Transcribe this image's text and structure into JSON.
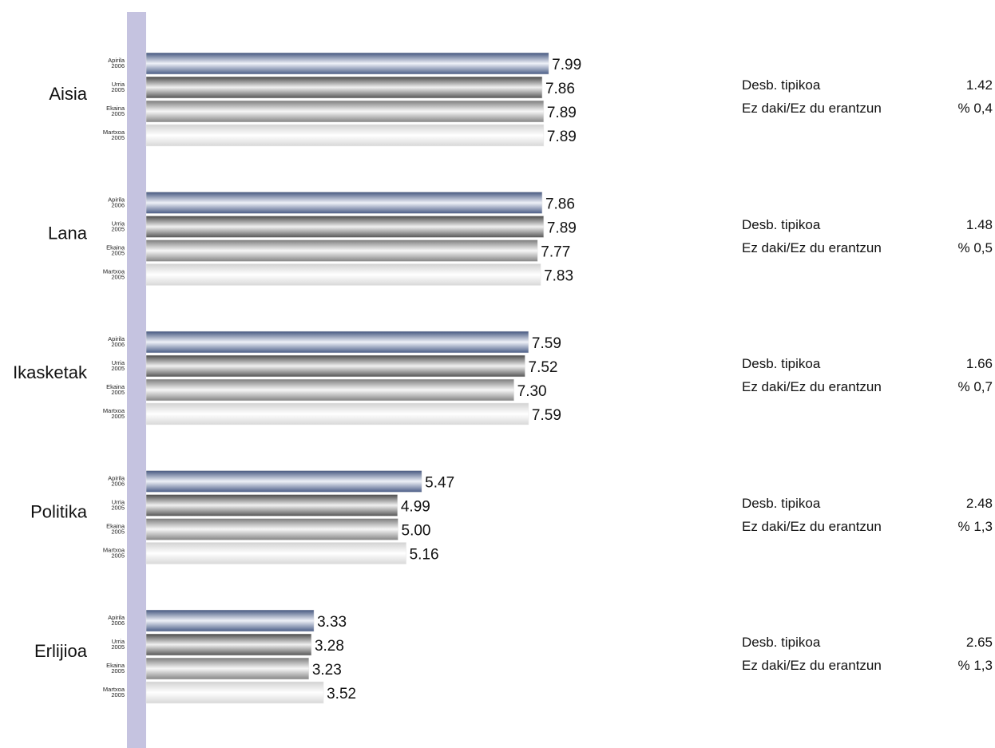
{
  "colors": {
    "axis_band": "#c5c3e0",
    "series_gradients": [
      [
        "#45577f",
        "#eef1f8",
        "#4a5c86"
      ],
      [
        "#4a4a4a",
        "#f0f0f0",
        "#555555"
      ],
      [
        "#7c7c7c",
        "#f7f7f7",
        "#858585"
      ],
      [
        "#d2d2d2",
        "#ffffff",
        "#d8d8d8"
      ]
    ]
  },
  "chart_data": {
    "type": "bar",
    "orientation": "horizontal",
    "xlim": [
      0,
      10
    ],
    "grid": false,
    "series": [
      {
        "name": "Apirila 2006",
        "label_lines": [
          "Apirila",
          "2006"
        ],
        "values": [
          7.99,
          7.86,
          7.59,
          5.47,
          3.33
        ]
      },
      {
        "name": "Urria 2005",
        "label_lines": [
          "Urria",
          "2005"
        ],
        "values": [
          7.86,
          7.89,
          7.52,
          4.99,
          3.28
        ]
      },
      {
        "name": "Ekaina 2005",
        "label_lines": [
          "Ekaina",
          "2005"
        ],
        "values": [
          7.89,
          7.77,
          7.3,
          5.0,
          3.23
        ]
      },
      {
        "name": "Martxoa 2005",
        "label_lines": [
          "Martxoa",
          "2005"
        ],
        "values": [
          7.89,
          7.83,
          7.59,
          5.16,
          3.52
        ]
      }
    ],
    "categories": [
      {
        "name": "Aisia",
        "labels": [
          "7.99",
          "7.86",
          "7.89",
          "7.89"
        ]
      },
      {
        "name": "Lana",
        "labels": [
          "7.86",
          "7.89",
          "7.77",
          "7.83"
        ]
      },
      {
        "name": "Ikasketak",
        "labels": [
          "7.59",
          "7.52",
          "7.30",
          "7.59"
        ]
      },
      {
        "name": "Politika",
        "labels": [
          "5.47",
          "4.99",
          "5.00",
          "5.16"
        ]
      },
      {
        "name": "Erlijioa",
        "labels": [
          "3.33",
          "3.28",
          "3.23",
          "3.52"
        ]
      }
    ]
  },
  "stats": {
    "std_label": "Desb. tipikoa",
    "dk_label": "Ez daki/Ez du erantzun",
    "rows": [
      {
        "std": "1.42",
        "dk": "% 0,4"
      },
      {
        "std": "1.48",
        "dk": "% 0,5"
      },
      {
        "std": "1.66",
        "dk": "% 0,7"
      },
      {
        "std": "2.48",
        "dk": "% 1,3"
      },
      {
        "std": "2.65",
        "dk": "% 1,3"
      }
    ]
  }
}
